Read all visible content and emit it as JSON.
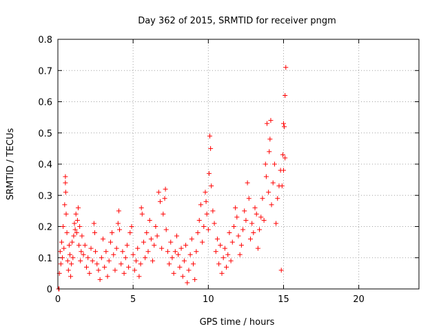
{
  "chart_data": {
    "type": "scatter",
    "title": "Day 362 of 2015, SRMTID for receiver pngm",
    "xlabel": "GPS time / hours",
    "ylabel": "SRMTID / TECUs",
    "xlim": [
      0,
      24
    ],
    "ylim": [
      0,
      0.8
    ],
    "x_ticks": [
      0,
      5,
      10,
      15,
      20
    ],
    "x_tick_labels": [
      "0",
      "5",
      "10",
      "15",
      "20"
    ],
    "y_ticks": [
      0,
      0.1,
      0.2,
      0.3,
      0.4,
      0.5,
      0.6,
      0.7,
      0.8
    ],
    "y_tick_labels": [
      "0",
      "0.1",
      "0.2",
      "0.3",
      "0.4",
      "0.5",
      "0.6",
      "0.7",
      "0.8"
    ],
    "grid": true,
    "marker": "plus",
    "marker_color": "#ff0000",
    "series": [
      {
        "name": "SRMTID",
        "points": [
          [
            0.05,
            0.0
          ],
          [
            0.08,
            0.0
          ],
          [
            0.1,
            0.05
          ],
          [
            0.15,
            0.12
          ],
          [
            0.2,
            0.08
          ],
          [
            0.25,
            0.15
          ],
          [
            0.3,
            0.1
          ],
          [
            0.35,
            0.2
          ],
          [
            0.4,
            0.13
          ],
          [
            0.45,
            0.27
          ],
          [
            0.5,
            0.34
          ],
          [
            0.5,
            0.36
          ],
          [
            0.52,
            0.31
          ],
          [
            0.55,
            0.24
          ],
          [
            0.6,
            0.18
          ],
          [
            0.65,
            0.09
          ],
          [
            0.7,
            0.06
          ],
          [
            0.75,
            0.14
          ],
          [
            0.8,
            0.11
          ],
          [
            0.85,
            0.04
          ],
          [
            0.9,
            0.08
          ],
          [
            0.95,
            0.15
          ],
          [
            1.0,
            0.1
          ],
          [
            1.05,
            0.17
          ],
          [
            1.1,
            0.21
          ],
          [
            1.15,
            0.19
          ],
          [
            1.2,
            0.24
          ],
          [
            1.25,
            0.18
          ],
          [
            1.3,
            0.22
          ],
          [
            1.35,
            0.26
          ],
          [
            1.4,
            0.14
          ],
          [
            1.45,
            0.2
          ],
          [
            1.5,
            0.09
          ],
          [
            1.55,
            0.12
          ],
          [
            1.6,
            0.17
          ],
          [
            1.7,
            0.11
          ],
          [
            1.8,
            0.14
          ],
          [
            1.9,
            0.07
          ],
          [
            2.0,
            0.1
          ],
          [
            2.1,
            0.05
          ],
          [
            2.2,
            0.13
          ],
          [
            2.3,
            0.09
          ],
          [
            2.4,
            0.21
          ],
          [
            2.45,
            0.18
          ],
          [
            2.5,
            0.12
          ],
          [
            2.6,
            0.08
          ],
          [
            2.7,
            0.06
          ],
          [
            2.8,
            0.03
          ],
          [
            2.9,
            0.1
          ],
          [
            3.0,
            0.16
          ],
          [
            3.1,
            0.07
          ],
          [
            3.2,
            0.12
          ],
          [
            3.3,
            0.04
          ],
          [
            3.4,
            0.09
          ],
          [
            3.5,
            0.15
          ],
          [
            3.6,
            0.18
          ],
          [
            3.7,
            0.11
          ],
          [
            3.8,
            0.06
          ],
          [
            3.9,
            0.13
          ],
          [
            4.0,
            0.21
          ],
          [
            4.05,
            0.25
          ],
          [
            4.1,
            0.19
          ],
          [
            4.2,
            0.08
          ],
          [
            4.3,
            0.12
          ],
          [
            4.4,
            0.05
          ],
          [
            4.5,
            0.1
          ],
          [
            4.6,
            0.14
          ],
          [
            4.7,
            0.07
          ],
          [
            4.8,
            0.18
          ],
          [
            4.9,
            0.2
          ],
          [
            5.0,
            0.11
          ],
          [
            5.1,
            0.06
          ],
          [
            5.2,
            0.09
          ],
          [
            5.3,
            0.13
          ],
          [
            5.4,
            0.04
          ],
          [
            5.5,
            0.08
          ],
          [
            5.55,
            0.26
          ],
          [
            5.6,
            0.24
          ],
          [
            5.7,
            0.15
          ],
          [
            5.8,
            0.1
          ],
          [
            5.9,
            0.18
          ],
          [
            6.0,
            0.12
          ],
          [
            6.1,
            0.22
          ],
          [
            6.2,
            0.16
          ],
          [
            6.3,
            0.09
          ],
          [
            6.4,
            0.14
          ],
          [
            6.5,
            0.2
          ],
          [
            6.6,
            0.17
          ],
          [
            6.7,
            0.31
          ],
          [
            6.8,
            0.28
          ],
          [
            6.9,
            0.13
          ],
          [
            7.0,
            0.24
          ],
          [
            7.1,
            0.29
          ],
          [
            7.15,
            0.32
          ],
          [
            7.2,
            0.19
          ],
          [
            7.3,
            0.12
          ],
          [
            7.4,
            0.08
          ],
          [
            7.5,
            0.15
          ],
          [
            7.6,
            0.1
          ],
          [
            7.7,
            0.05
          ],
          [
            7.8,
            0.12
          ],
          [
            7.9,
            0.17
          ],
          [
            8.0,
            0.11
          ],
          [
            8.1,
            0.07
          ],
          [
            8.2,
            0.13
          ],
          [
            8.3,
            0.04
          ],
          [
            8.4,
            0.09
          ],
          [
            8.5,
            0.14
          ],
          [
            8.6,
            0.02
          ],
          [
            8.7,
            0.06
          ],
          [
            8.8,
            0.11
          ],
          [
            8.9,
            0.16
          ],
          [
            9.0,
            0.08
          ],
          [
            9.1,
            0.03
          ],
          [
            9.2,
            0.12
          ],
          [
            9.3,
            0.18
          ],
          [
            9.4,
            0.22
          ],
          [
            9.5,
            0.27
          ],
          [
            9.6,
            0.15
          ],
          [
            9.7,
            0.2
          ],
          [
            9.8,
            0.31
          ],
          [
            9.85,
            0.28
          ],
          [
            9.9,
            0.24
          ],
          [
            10.0,
            0.19
          ],
          [
            10.05,
            0.37
          ],
          [
            10.1,
            0.49
          ],
          [
            10.15,
            0.45
          ],
          [
            10.2,
            0.33
          ],
          [
            10.3,
            0.25
          ],
          [
            10.4,
            0.21
          ],
          [
            10.5,
            0.12
          ],
          [
            10.6,
            0.16
          ],
          [
            10.7,
            0.08
          ],
          [
            10.8,
            0.14
          ],
          [
            10.9,
            0.05
          ],
          [
            11.0,
            0.1
          ],
          [
            11.1,
            0.13
          ],
          [
            11.2,
            0.07
          ],
          [
            11.3,
            0.11
          ],
          [
            11.4,
            0.18
          ],
          [
            11.5,
            0.09
          ],
          [
            11.6,
            0.15
          ],
          [
            11.7,
            0.2
          ],
          [
            11.8,
            0.26
          ],
          [
            11.9,
            0.23
          ],
          [
            12.0,
            0.17
          ],
          [
            12.1,
            0.11
          ],
          [
            12.2,
            0.14
          ],
          [
            12.3,
            0.19
          ],
          [
            12.4,
            0.25
          ],
          [
            12.5,
            0.22
          ],
          [
            12.6,
            0.34
          ],
          [
            12.7,
            0.29
          ],
          [
            12.8,
            0.16
          ],
          [
            12.9,
            0.21
          ],
          [
            13.0,
            0.18
          ],
          [
            13.1,
            0.26
          ],
          [
            13.2,
            0.24
          ],
          [
            13.3,
            0.13
          ],
          [
            13.4,
            0.19
          ],
          [
            13.5,
            0.23
          ],
          [
            13.6,
            0.29
          ],
          [
            13.7,
            0.22
          ],
          [
            13.8,
            0.4
          ],
          [
            13.85,
            0.36
          ],
          [
            13.9,
            0.53
          ],
          [
            14.0,
            0.31
          ],
          [
            14.05,
            0.44
          ],
          [
            14.1,
            0.48
          ],
          [
            14.15,
            0.54
          ],
          [
            14.2,
            0.27
          ],
          [
            14.3,
            0.34
          ],
          [
            14.4,
            0.4
          ],
          [
            14.5,
            0.21
          ],
          [
            14.6,
            0.29
          ],
          [
            14.7,
            0.33
          ],
          [
            14.8,
            0.38
          ],
          [
            14.85,
            0.06
          ],
          [
            14.9,
            0.33
          ],
          [
            14.95,
            0.43
          ],
          [
            15.0,
            0.53
          ],
          [
            15.05,
            0.52
          ],
          [
            15.1,
            0.42
          ],
          [
            15.1,
            0.62
          ],
          [
            15.15,
            0.71
          ],
          [
            15.0,
            0.38
          ]
        ]
      }
    ]
  }
}
